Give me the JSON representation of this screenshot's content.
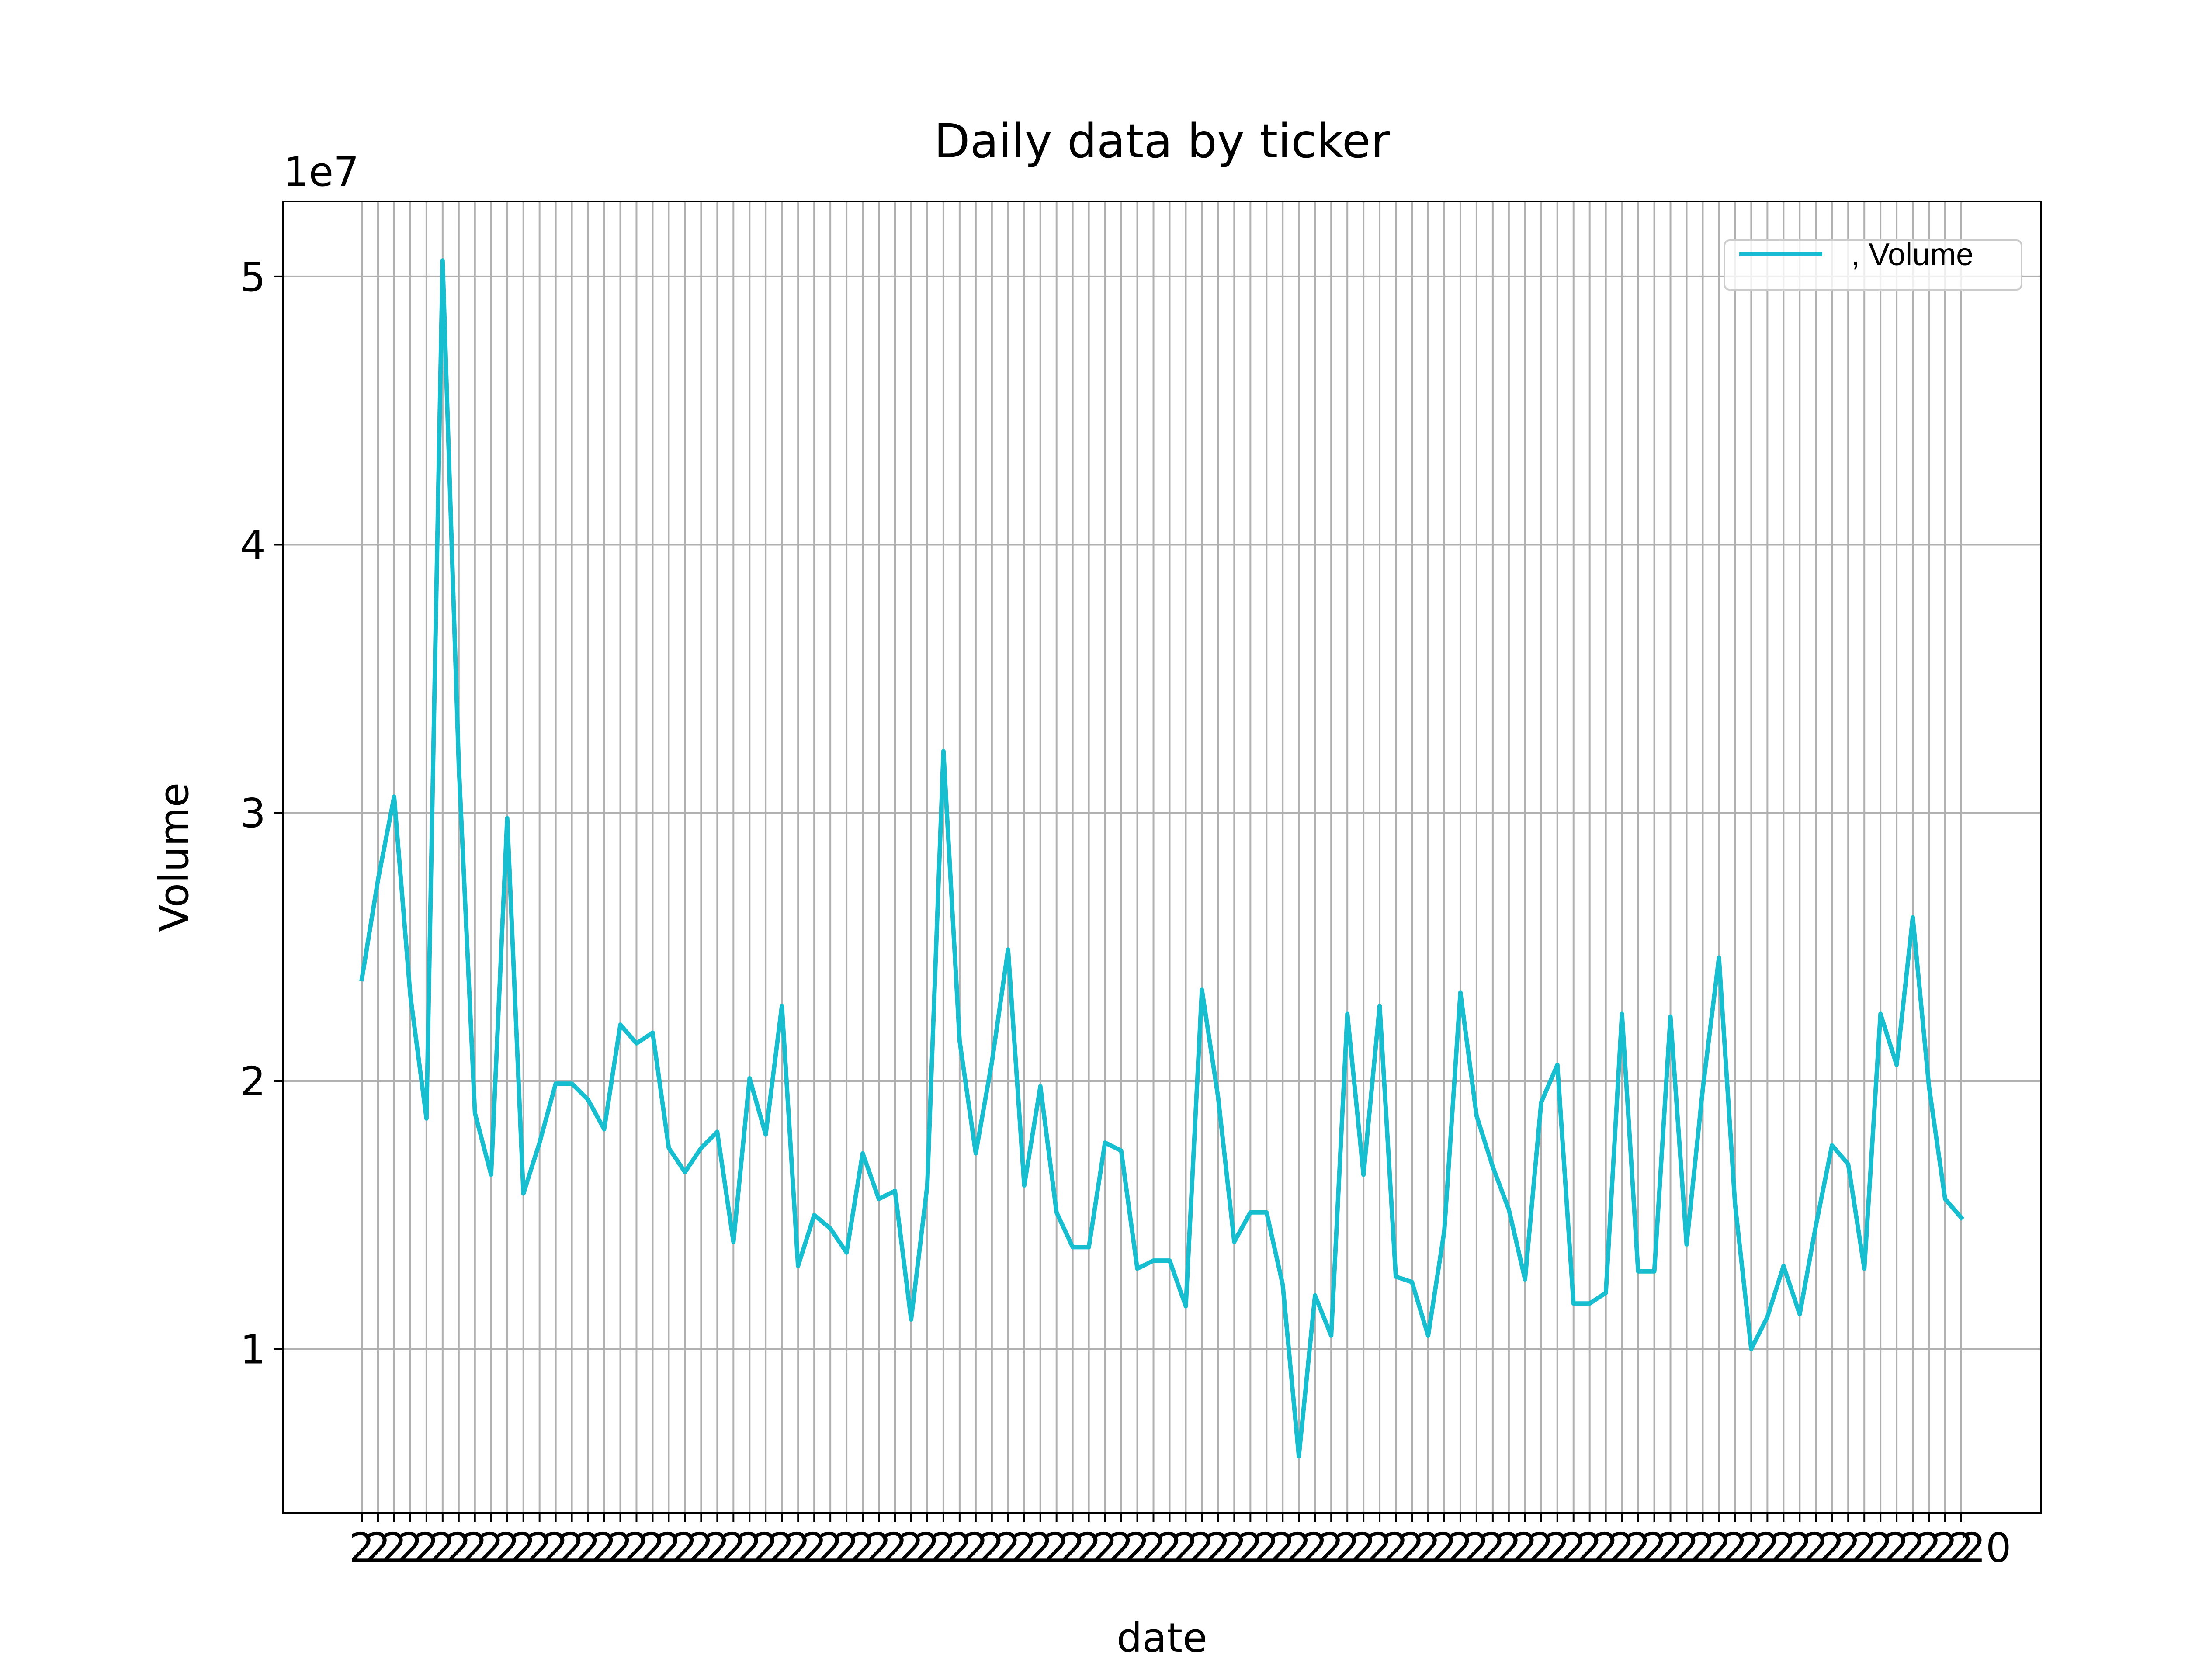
{
  "chart_data": {
    "type": "line",
    "title": "Daily data by ticker",
    "xlabel": "date",
    "ylabel": "Volume",
    "y_offset_text": "1e7",
    "y_scale_factor": 10000000,
    "ylim": [
      3900000,
      52800000
    ],
    "yticks": [
      1,
      2,
      3,
      4,
      5
    ],
    "grid": true,
    "legend_position": "top-right",
    "line_color": "#17becf",
    "x_tick_text": "2",
    "x_tick_end_text": "20",
    "series": [
      {
        "name": ", Volume",
        "values": [
          23800000,
          27500000,
          30600000,
          23200000,
          18600000,
          50600000,
          31800000,
          18800000,
          16500000,
          29800000,
          15800000,
          17700000,
          19900000,
          19900000,
          19300000,
          18200000,
          22100000,
          21400000,
          21800000,
          17500000,
          16600000,
          17500000,
          18100000,
          14000000,
          20100000,
          18000000,
          22800000,
          13100000,
          15000000,
          14500000,
          13600000,
          17300000,
          15600000,
          15900000,
          11100000,
          16100000,
          32300000,
          21500000,
          17300000,
          20700000,
          24900000,
          16100000,
          19800000,
          15100000,
          13800000,
          13800000,
          17700000,
          17400000,
          13000000,
          13300000,
          13300000,
          11600000,
          23400000,
          19400000,
          14000000,
          15100000,
          15100000,
          12400000,
          6000000,
          12000000,
          10500000,
          22500000,
          16500000,
          22800000,
          12700000,
          12500000,
          10500000,
          14400000,
          23300000,
          18700000,
          16800000,
          15200000,
          12600000,
          19200000,
          20600000,
          11700000,
          11700000,
          12100000,
          22500000,
          12900000,
          12900000,
          22400000,
          13900000,
          19700000,
          24600000,
          15400000,
          10000000,
          11200000,
          13100000,
          11300000,
          14600000,
          17600000,
          16900000,
          13000000,
          22500000,
          20600000,
          26100000,
          19800000,
          15600000,
          14900000
        ]
      }
    ]
  }
}
